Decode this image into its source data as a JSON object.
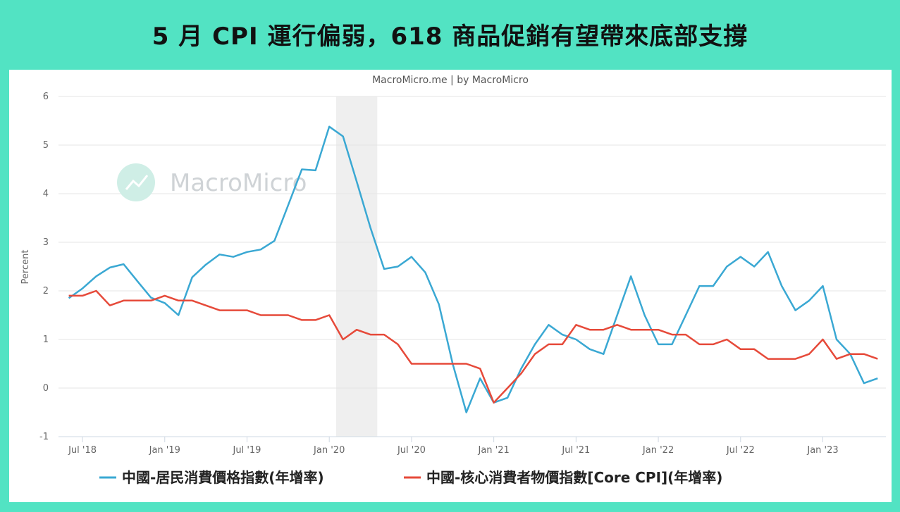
{
  "headline": "5 月 CPI 運行偏弱，618 商品促銷有望帶來底部支撐",
  "chart_data": {
    "type": "line",
    "credit": "MacroMicro.me | by MacroMicro",
    "watermark": "MacroMicro",
    "ylabel": "Percent",
    "ylim": [
      -1,
      6
    ],
    "yticks": [
      -1,
      0,
      1,
      2,
      3,
      4,
      5,
      6
    ],
    "grid": true,
    "legend_position": "bottom",
    "x": [
      "2018-06",
      "2018-07",
      "2018-08",
      "2018-09",
      "2018-10",
      "2018-11",
      "2018-12",
      "2019-01",
      "2019-02",
      "2019-03",
      "2019-04",
      "2019-05",
      "2019-06",
      "2019-07",
      "2019-08",
      "2019-09",
      "2019-10",
      "2019-11",
      "2019-12",
      "2020-01",
      "2020-02",
      "2020-03",
      "2020-04",
      "2020-05",
      "2020-06",
      "2020-07",
      "2020-08",
      "2020-09",
      "2020-10",
      "2020-11",
      "2020-12",
      "2021-01",
      "2021-02",
      "2021-03",
      "2021-04",
      "2021-05",
      "2021-06",
      "2021-07",
      "2021-08",
      "2021-09",
      "2021-10",
      "2021-11",
      "2021-12",
      "2022-01",
      "2022-02",
      "2022-03",
      "2022-04",
      "2022-05",
      "2022-06",
      "2022-07",
      "2022-08",
      "2022-09",
      "2022-10",
      "2022-11",
      "2022-12",
      "2023-01",
      "2023-02",
      "2023-03",
      "2023-04",
      "2023-05"
    ],
    "xtick_labels": [
      {
        "x": "2018-07",
        "label": "Jul '18"
      },
      {
        "x": "2019-01",
        "label": "Jan '19"
      },
      {
        "x": "2019-07",
        "label": "Jul '19"
      },
      {
        "x": "2020-01",
        "label": "Jan '20"
      },
      {
        "x": "2020-07",
        "label": "Jul '20"
      },
      {
        "x": "2021-01",
        "label": "Jan '21"
      },
      {
        "x": "2021-07",
        "label": "Jul '21"
      },
      {
        "x": "2022-01",
        "label": "Jan '22"
      },
      {
        "x": "2022-07",
        "label": "Jul '22"
      },
      {
        "x": "2023-01",
        "label": "Jan '23"
      }
    ],
    "shaded_range": [
      "2020-02",
      "2020-05"
    ],
    "series": [
      {
        "name": "中國-居民消費價格指數(年增率)",
        "color": "#3aa8d3",
        "values": [
          1.85,
          2.05,
          2.3,
          2.48,
          2.55,
          2.2,
          1.86,
          1.75,
          1.5,
          2.28,
          2.54,
          2.75,
          2.7,
          2.8,
          2.85,
          3.03,
          3.76,
          4.5,
          4.48,
          5.38,
          5.18,
          4.25,
          3.3,
          2.45,
          2.5,
          2.7,
          2.38,
          1.72,
          0.5,
          -0.5,
          0.2,
          -0.3,
          -0.2,
          0.4,
          0.9,
          1.3,
          1.1,
          1.0,
          0.8,
          0.7,
          1.5,
          2.3,
          1.5,
          0.9,
          0.9,
          1.5,
          2.1,
          2.1,
          2.5,
          2.7,
          2.5,
          2.8,
          2.1,
          1.6,
          1.8,
          2.1,
          1.0,
          0.7,
          0.1,
          0.2
        ]
      },
      {
        "name": "中國-核心消費者物價指數[Core CPI](年增率)",
        "color": "#e64a3a",
        "values": [
          1.9,
          1.9,
          2.0,
          1.7,
          1.8,
          1.8,
          1.8,
          1.9,
          1.8,
          1.8,
          1.7,
          1.6,
          1.6,
          1.6,
          1.5,
          1.5,
          1.5,
          1.4,
          1.4,
          1.5,
          1.0,
          1.2,
          1.1,
          1.1,
          0.9,
          0.5,
          0.5,
          0.5,
          0.5,
          0.5,
          0.4,
          -0.3,
          0.0,
          0.3,
          0.7,
          0.9,
          0.9,
          1.3,
          1.2,
          1.2,
          1.3,
          1.2,
          1.2,
          1.2,
          1.1,
          1.1,
          0.9,
          0.9,
          1.0,
          0.8,
          0.8,
          0.6,
          0.6,
          0.6,
          0.7,
          1.0,
          0.6,
          0.7,
          0.7,
          0.6
        ]
      }
    ]
  }
}
